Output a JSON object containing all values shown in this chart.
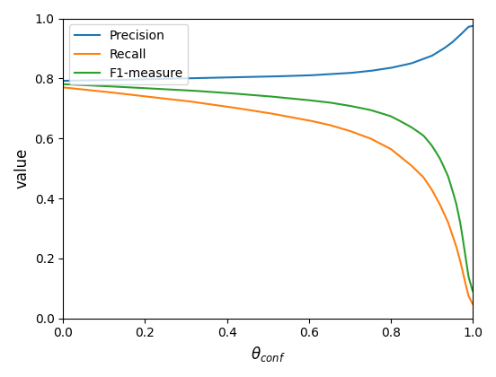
{
  "title": "",
  "xlabel": "$\\theta_{conf}$",
  "ylabel": "value",
  "xlim": [
    0,
    1.0
  ],
  "ylim": [
    0,
    1.0
  ],
  "colors": {
    "precision": "#1f77b4",
    "recall": "#ff7f0e",
    "f1": "#2ca02c"
  },
  "legend_labels": [
    "Precision",
    "Recall",
    "F1-measure"
  ],
  "n_points": 1000,
  "precision_control": [
    [
      0.0,
      0.792
    ],
    [
      0.1,
      0.794
    ],
    [
      0.2,
      0.797
    ],
    [
      0.3,
      0.8
    ],
    [
      0.4,
      0.803
    ],
    [
      0.5,
      0.806
    ],
    [
      0.6,
      0.81
    ],
    [
      0.7,
      0.818
    ],
    [
      0.75,
      0.825
    ],
    [
      0.8,
      0.835
    ],
    [
      0.85,
      0.85
    ],
    [
      0.9,
      0.875
    ],
    [
      0.93,
      0.9
    ],
    [
      0.95,
      0.92
    ],
    [
      0.97,
      0.945
    ],
    [
      0.99,
      0.972
    ],
    [
      1.0,
      0.975
    ]
  ],
  "recall_control": [
    [
      0.0,
      0.77
    ],
    [
      0.1,
      0.756
    ],
    [
      0.2,
      0.74
    ],
    [
      0.3,
      0.725
    ],
    [
      0.4,
      0.706
    ],
    [
      0.5,
      0.685
    ],
    [
      0.6,
      0.66
    ],
    [
      0.65,
      0.645
    ],
    [
      0.7,
      0.625
    ],
    [
      0.75,
      0.6
    ],
    [
      0.8,
      0.565
    ],
    [
      0.85,
      0.51
    ],
    [
      0.88,
      0.47
    ],
    [
      0.9,
      0.43
    ],
    [
      0.92,
      0.38
    ],
    [
      0.94,
      0.32
    ],
    [
      0.96,
      0.24
    ],
    [
      0.97,
      0.19
    ],
    [
      0.98,
      0.13
    ],
    [
      0.99,
      0.075
    ],
    [
      1.0,
      0.048
    ]
  ]
}
